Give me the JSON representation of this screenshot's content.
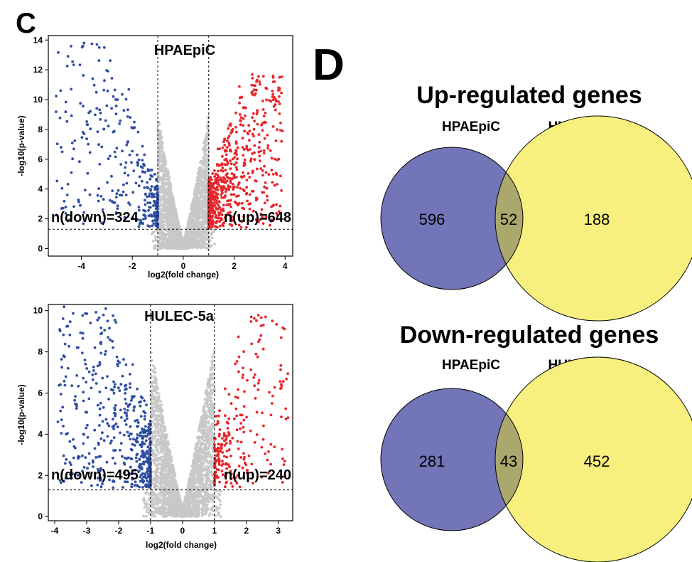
{
  "panels": {
    "c_letter": "C",
    "d_letter": "D"
  },
  "colors": {
    "down": "#2e4ea3",
    "up": "#e8262b",
    "ns": "#c8c8c8",
    "venn_left": "#7275b8",
    "venn_right": "#f7f07f",
    "venn_overlap": "#aba86d"
  },
  "chart_data": [
    {
      "type": "scatter",
      "subtype": "volcano",
      "title": "HPAEpiC",
      "xlabel": "log2(fold change)",
      "ylabel": "-log10(p-value)",
      "xlim": [
        -5.3,
        4.3
      ],
      "ylim": [
        -0.5,
        14.3
      ],
      "xticks": [
        -4,
        -2,
        0,
        2,
        4
      ],
      "yticks": [
        0,
        2,
        4,
        6,
        8,
        10,
        12,
        14
      ],
      "fc_thresholds": [
        -1,
        1
      ],
      "p_threshold": 1.3,
      "annotations": {
        "down": "n(down)=324",
        "up": "n(up)=648"
      },
      "series": [
        {
          "name": "down",
          "count": 324,
          "x_range": [
            -5.0,
            -1.0
          ],
          "y_max": 13.8
        },
        {
          "name": "up",
          "count": 648,
          "x_range": [
            1.0,
            3.9
          ],
          "y_max": 11.8
        },
        {
          "name": "ns",
          "x_range": [
            -1.0,
            1.0
          ],
          "y_max": 8.5
        }
      ],
      "outliers": [
        [
          -3.3,
          13.5
        ],
        [
          -3.1,
          13.5
        ],
        [
          -3.9,
          13.8
        ],
        [
          3.9,
          7.9
        ],
        [
          -4.8,
          6.8
        ],
        [
          3.2,
          8.5
        ]
      ]
    },
    {
      "type": "scatter",
      "subtype": "volcano",
      "title": "HULEC-5a",
      "xlabel": "log2(fold change)",
      "ylabel": "-log10(p-value)",
      "xlim": [
        -4.2,
        3.45
      ],
      "ylim": [
        -0.2,
        10.3
      ],
      "xticks": [
        -4,
        -3,
        -2,
        -1,
        0,
        1,
        2,
        3
      ],
      "yticks": [
        0,
        2,
        4,
        6,
        8,
        10
      ],
      "fc_thresholds": [
        -1,
        1
      ],
      "p_threshold": 1.3,
      "annotations": {
        "down": "n(down)=495",
        "up": "n(up)=240"
      },
      "series": [
        {
          "name": "down",
          "count": 495,
          "x_range": [
            -3.9,
            -1.0
          ],
          "y_max": 10.1
        },
        {
          "name": "up",
          "count": 240,
          "x_range": [
            1.0,
            3.3
          ],
          "y_max": 9.7
        },
        {
          "name": "ns",
          "x_range": [
            -1.0,
            1.0
          ],
          "y_max": 8.0
        }
      ],
      "outliers": [
        [
          -2.4,
          10.1
        ],
        [
          2.6,
          9.7
        ],
        [
          -3.9,
          4.6
        ],
        [
          3.3,
          4.8
        ],
        [
          2.8,
          5.5
        ],
        [
          -3.1,
          4.0
        ]
      ]
    },
    {
      "type": "venn",
      "title": "Up-regulated genes",
      "sets": [
        "HPAEpiC",
        "HULEC-5a"
      ],
      "values": {
        "only_left": 596,
        "both": 52,
        "only_right": 188
      }
    },
    {
      "type": "venn",
      "title": "Down-regulated genes",
      "sets": [
        "HPAEpiC",
        "HULEC-5a"
      ],
      "values": {
        "only_left": 281,
        "both": 43,
        "only_right": 452
      }
    }
  ]
}
